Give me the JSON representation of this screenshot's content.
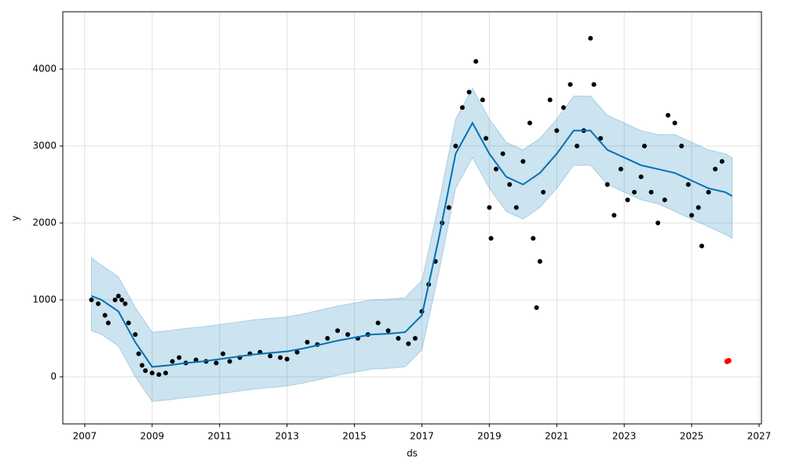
{
  "chart_data": {
    "type": "forecast",
    "xlabel": "ds",
    "ylabel": "y",
    "xlim": [
      2006.35,
      2027.07
    ],
    "ylim": [
      -612,
      4745
    ],
    "xticks": [
      2007,
      2009,
      2011,
      2013,
      2015,
      2017,
      2019,
      2021,
      2023,
      2025,
      2027
    ],
    "yticks": [
      0,
      1000,
      2000,
      3000,
      4000
    ],
    "grid": true,
    "observed": {
      "color": "#000000",
      "x": [
        2007.2,
        2007.4,
        2007.6,
        2007.7,
        2007.9,
        2008.0,
        2008.1,
        2008.2,
        2008.3,
        2008.5,
        2008.6,
        2008.7,
        2008.8,
        2009.0,
        2009.2,
        2009.4,
        2009.6,
        2009.8,
        2010.0,
        2010.3,
        2010.6,
        2010.9,
        2011.1,
        2011.3,
        2011.6,
        2011.9,
        2012.2,
        2012.5,
        2012.8,
        2013.0,
        2013.3,
        2013.6,
        2013.9,
        2014.2,
        2014.5,
        2014.8,
        2015.1,
        2015.4,
        2015.7,
        2016.0,
        2016.3,
        2016.6,
        2016.8,
        2017.0,
        2017.2,
        2017.4,
        2017.6,
        2017.8,
        2018.0,
        2018.2,
        2018.4,
        2018.6,
        2018.8,
        2018.9,
        2019.0,
        2019.05,
        2019.2,
        2019.4,
        2019.6,
        2019.8,
        2020.0,
        2020.2,
        2020.3,
        2020.4,
        2020.5,
        2020.6,
        2020.8,
        2021.0,
        2021.2,
        2021.4,
        2021.6,
        2021.8,
        2022.0,
        2022.1,
        2022.3,
        2022.5,
        2022.7,
        2022.9,
        2023.1,
        2023.3,
        2023.5,
        2023.6,
        2023.8,
        2024.0,
        2024.2,
        2024.3,
        2024.5,
        2024.7,
        2024.9,
        2025.0,
        2025.2,
        2025.3,
        2025.5,
        2025.7,
        2025.9
      ],
      "values": [
        1000,
        950,
        800,
        700,
        1000,
        1050,
        1000,
        950,
        700,
        550,
        300,
        150,
        80,
        50,
        30,
        50,
        200,
        250,
        180,
        220,
        200,
        180,
        300,
        200,
        250,
        300,
        320,
        270,
        250,
        230,
        320,
        450,
        420,
        500,
        600,
        550,
        500,
        550,
        700,
        600,
        500,
        430,
        500,
        850,
        1200,
        1500,
        2000,
        2200,
        3000,
        3500,
        3700,
        4100,
        3600,
        3100,
        2200,
        1800,
        2700,
        2900,
        2500,
        2200,
        2800,
        3300,
        1800,
        900,
        1500,
        2400,
        3600,
        3200,
        3500,
        3800,
        3000,
        3200,
        4400,
        3800,
        3100,
        2500,
        2100,
        2700,
        2300,
        2400,
        2600,
        3000,
        2400,
        2000,
        2300,
        3400,
        3300,
        3000,
        2500,
        2100,
        2200,
        1700,
        2400,
        2700,
        2800
      ]
    },
    "future": {
      "color": "#ff0000",
      "x": [
        2026.05,
        2026.1
      ],
      "values": [
        200,
        210
      ]
    },
    "forecast": {
      "color": "#0072b2",
      "x": [
        2007.2,
        2007.5,
        2008,
        2008.5,
        2009,
        2009.5,
        2010,
        2010.5,
        2011,
        2011.5,
        2012,
        2012.5,
        2013,
        2013.5,
        2014,
        2014.5,
        2015,
        2015.5,
        2016,
        2016.5,
        2017,
        2017.5,
        2018,
        2018.5,
        2019,
        2019.5,
        2020,
        2020.5,
        2021,
        2021.5,
        2022,
        2022.5,
        2023,
        2023.5,
        2024,
        2024.5,
        2025,
        2025.5,
        2026,
        2026.2
      ],
      "values": [
        1050,
        1000,
        850,
        450,
        130,
        150,
        180,
        200,
        230,
        260,
        290,
        310,
        330,
        370,
        420,
        470,
        510,
        550,
        560,
        580,
        800,
        1800,
        2900,
        3300,
        2900,
        2600,
        2500,
        2650,
        2900,
        3200,
        3200,
        2950,
        2850,
        2750,
        2700,
        2650,
        2550,
        2450,
        2400,
        2350
      ],
      "lower": [
        600,
        550,
        400,
        0,
        -320,
        -300,
        -270,
        -250,
        -220,
        -190,
        -160,
        -140,
        -120,
        -80,
        -30,
        20,
        60,
        100,
        110,
        130,
        350,
        1350,
        2450,
        2850,
        2450,
        2150,
        2050,
        2200,
        2450,
        2750,
        2750,
        2500,
        2400,
        2300,
        2250,
        2150,
        2050,
        1950,
        1850,
        1800
      ],
      "upper": [
        1550,
        1450,
        1300,
        900,
        580,
        600,
        630,
        650,
        680,
        710,
        740,
        760,
        780,
        820,
        870,
        920,
        960,
        1000,
        1010,
        1030,
        1250,
        2250,
        3350,
        3750,
        3350,
        3050,
        2950,
        3100,
        3350,
        3650,
        3650,
        3400,
        3300,
        3200,
        3150,
        3150,
        3050,
        2950,
        2900,
        2850
      ]
    }
  }
}
